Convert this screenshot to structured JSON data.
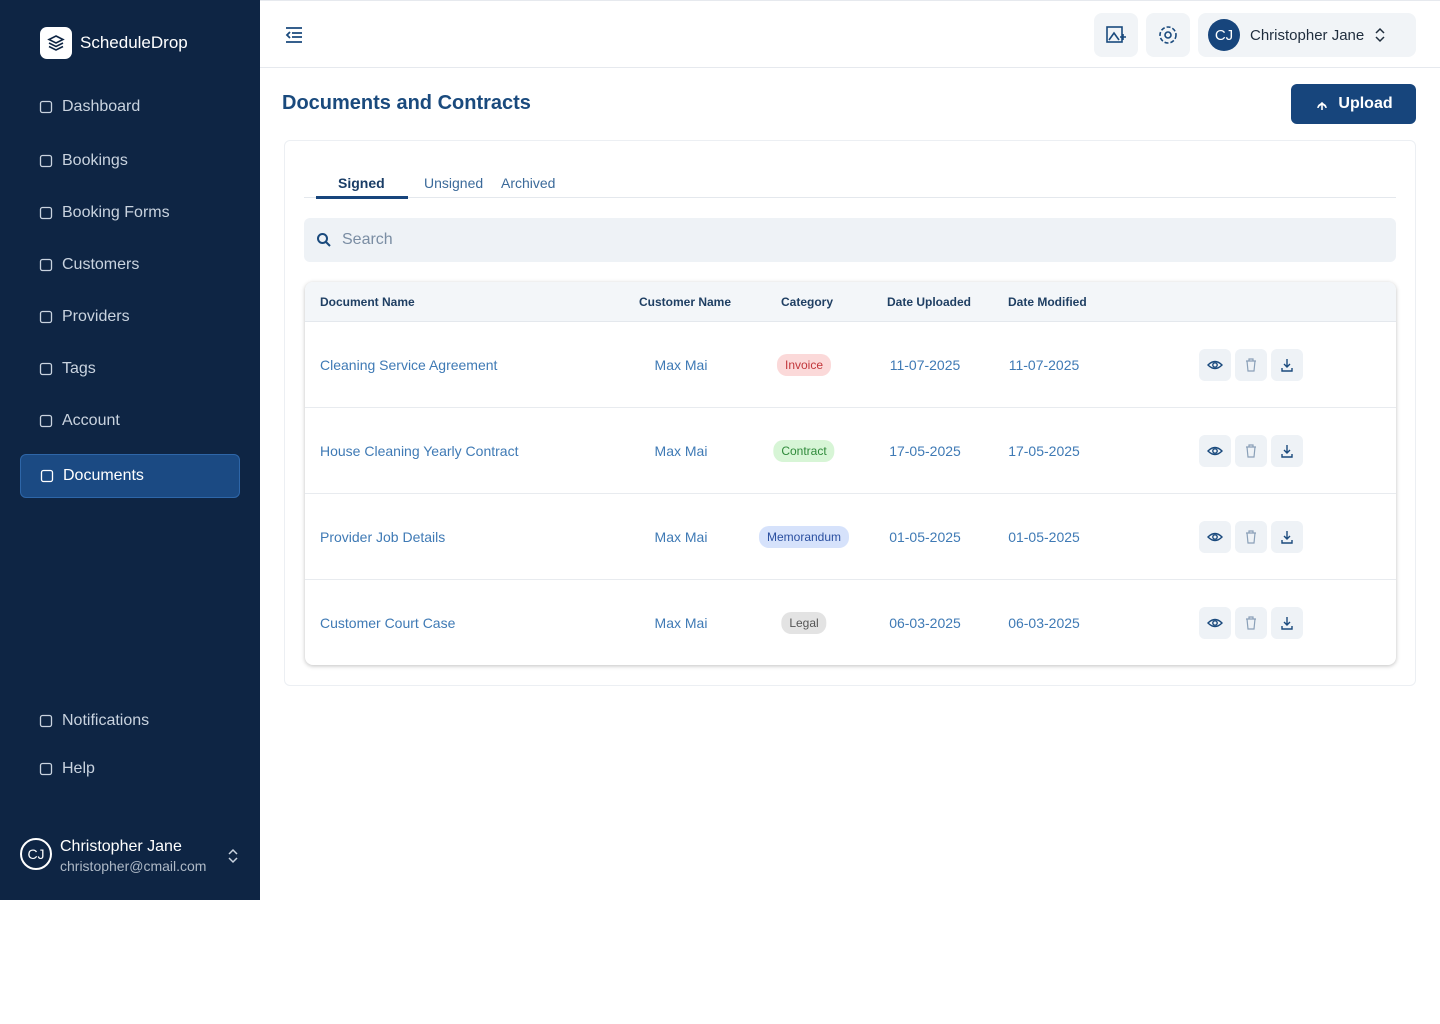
{
  "sidebar": {
    "brand": "ScheduleDrop",
    "nav": [
      "Dashboard",
      "Bookings",
      "Booking Forms",
      "Customers",
      "Providers",
      "Tags",
      "Account",
      "Documents"
    ],
    "bottom_nav": [
      "Notifications",
      "Help"
    ],
    "user": {
      "initials": "CJ",
      "name": "Christopher Jane",
      "email": "christopher@cmail.com"
    }
  },
  "topbar": {
    "user": {
      "initials": "CJ",
      "name": "Christopher Jane"
    }
  },
  "page": {
    "title": "Documents and Contracts",
    "upload": "Upload",
    "tabs": [
      "Signed",
      "Unsigned",
      "Archived"
    ],
    "search_placeholder": "Search"
  },
  "table": {
    "columns": [
      "Document Name",
      "Customer Name",
      "Category",
      "Date Uploaded",
      "Date Modified"
    ],
    "rows": [
      [
        "Cleaning Service Agreement",
        "Max Mai",
        "Invoice",
        "11-07-2025",
        "11-07-2025"
      ],
      [
        "House Cleaning Yearly Contract",
        "Max Mai",
        "Contract",
        "17-05-2025",
        "17-05-2025"
      ],
      [
        "Provider Job Details",
        "Max Mai",
        "Memorandum",
        "01-05-2025",
        "01-05-2025"
      ],
      [
        "Customer Court Case",
        "Max Mai",
        "Legal",
        "06-03-2025",
        "06-03-2025"
      ]
    ]
  }
}
